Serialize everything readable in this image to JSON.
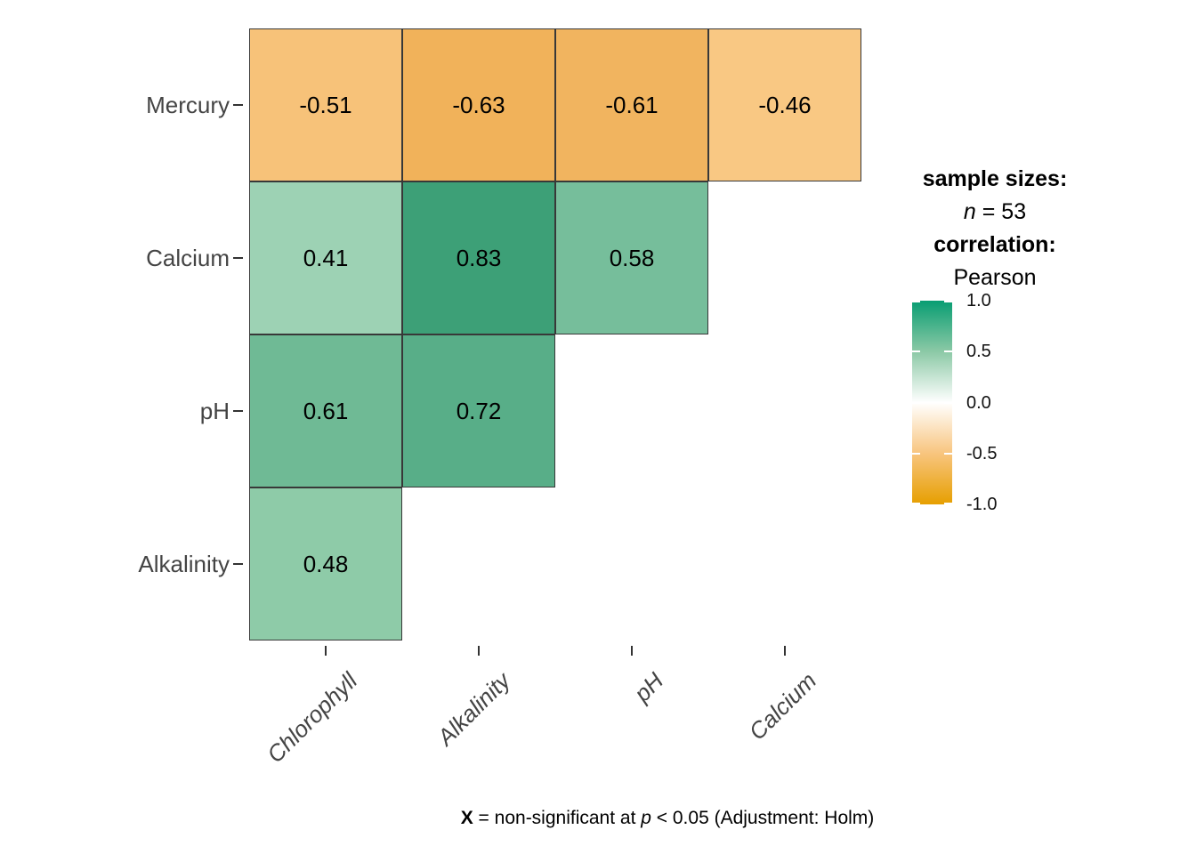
{
  "chart_data": {
    "type": "heatmap",
    "title": "",
    "statistic": "Pearson correlation",
    "x_categories": [
      "Chlorophyll",
      "Alkalinity",
      "pH",
      "Calcium"
    ],
    "y_categories": [
      "Mercury",
      "Calcium",
      "pH",
      "Alkalinity"
    ],
    "value_domain": [
      -1,
      1
    ],
    "legend_position": "right",
    "grid": false,
    "cells": [
      {
        "y": "Mercury",
        "x": "Chlorophyll",
        "value": "-0.51",
        "color": "#F7C279"
      },
      {
        "y": "Mercury",
        "x": "Alkalinity",
        "value": "-0.63",
        "color": "#F1B25A"
      },
      {
        "y": "Mercury",
        "x": "pH",
        "value": "-0.61",
        "color": "#F1B45F"
      },
      {
        "y": "Mercury",
        "x": "Calcium",
        "value": "-0.46",
        "color": "#F9C883"
      },
      {
        "y": "Calcium",
        "x": "Chlorophyll",
        "value": "0.41",
        "color": "#9DD2B4"
      },
      {
        "y": "Calcium",
        "x": "Alkalinity",
        "value": "0.83",
        "color": "#3DA077"
      },
      {
        "y": "Calcium",
        "x": "pH",
        "value": "0.58",
        "color": "#76BE9B"
      },
      {
        "y": "pH",
        "x": "Chlorophyll",
        "value": "0.61",
        "color": "#6FBA95"
      },
      {
        "y": "pH",
        "x": "Alkalinity",
        "value": "0.72",
        "color": "#58AE88"
      },
      {
        "y": "Alkalinity",
        "x": "Chlorophyll",
        "value": "0.48",
        "color": "#8ECBA8"
      }
    ]
  },
  "legend": {
    "sample_sizes_label": "sample sizes:",
    "n_symbol": "n",
    "n_value": " = 53",
    "correlation_label": "correlation:",
    "correlation_method": "Pearson",
    "colorbar": {
      "ticks": [
        "1.0",
        "0.5",
        "0.0",
        "-0.5",
        "-1.0"
      ],
      "color_high": "#009E73",
      "color_mid": "#FFFFFF",
      "color_low": "#E69F00",
      "gradient_stops": [
        "#089D72",
        "#8CC9A6",
        "#FFFFFF",
        "#F8C57E",
        "#E69F00"
      ]
    }
  },
  "caption": {
    "x_symbol": "X",
    "mid_text": " = non-significant at ",
    "p_symbol": "p",
    "end_text": " < 0.05 (Adjustment: Holm)"
  }
}
